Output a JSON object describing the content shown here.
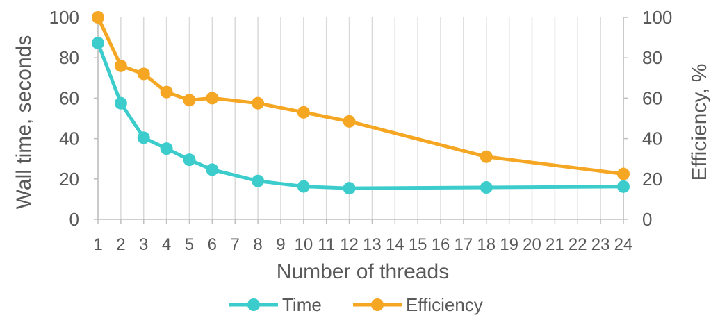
{
  "chart_data": {
    "type": "line",
    "x": [
      1,
      2,
      3,
      4,
      5,
      6,
      8,
      10,
      12,
      18,
      24
    ],
    "x_ticks": [
      1,
      2,
      3,
      4,
      5,
      6,
      7,
      8,
      9,
      10,
      11,
      12,
      13,
      14,
      15,
      16,
      17,
      18,
      19,
      20,
      21,
      22,
      23,
      24
    ],
    "xlim": [
      1,
      24
    ],
    "xlabel": "Number of threads",
    "ylabel": "Wall time, seconds",
    "ylim": [
      0,
      100
    ],
    "y_ticks": [
      0,
      20,
      40,
      60,
      80,
      100
    ],
    "y2label": "Efficiency, %",
    "y2lim": [
      0,
      100
    ],
    "y2_ticks": [
      0,
      20,
      40,
      60,
      80,
      100
    ],
    "grid": "vertical",
    "legend_position": "bottom",
    "series": [
      {
        "name": "Time",
        "axis": "left",
        "color": "#3CCCCC",
        "values": [
          87.3,
          57.5,
          40.4,
          35.0,
          29.5,
          24.6,
          19.0,
          16.3,
          15.4,
          15.8,
          16.2
        ]
      },
      {
        "name": "Efficiency",
        "axis": "right",
        "color": "#F5A623",
        "values": [
          100,
          76.0,
          72.0,
          63.0,
          59.0,
          60.0,
          57.5,
          53.0,
          48.5,
          31.0,
          22.5
        ]
      }
    ]
  }
}
